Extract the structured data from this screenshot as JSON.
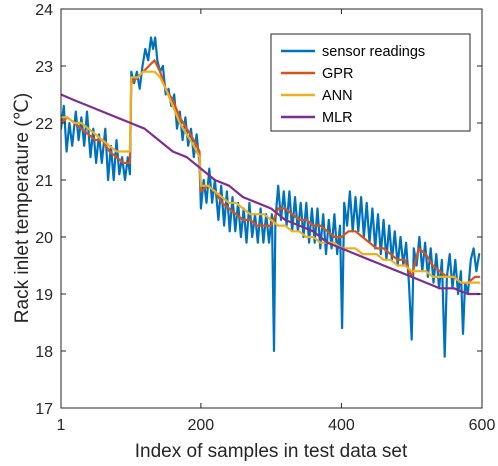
{
  "chart_data": {
    "type": "line",
    "xlabel": "Index of samples in test data set",
    "ylabel": "Rack inlet temperature (℃)",
    "xlim": [
      1,
      600
    ],
    "ylim": [
      17,
      24
    ],
    "xticks": [
      1,
      200,
      400,
      600
    ],
    "yticks": [
      17,
      18,
      19,
      20,
      21,
      22,
      23,
      24
    ],
    "grid": false,
    "legend_position": "top-right",
    "series": [
      {
        "name": "sensor readings",
        "color": "#0072BD",
        "points": [
          [
            1,
            21.9
          ],
          [
            5,
            22.3
          ],
          [
            9,
            21.5
          ],
          [
            13,
            22.0
          ],
          [
            17,
            21.6
          ],
          [
            22,
            22.2
          ],
          [
            26,
            21.7
          ],
          [
            30,
            22.1
          ],
          [
            34,
            21.6
          ],
          [
            38,
            22.2
          ],
          [
            43,
            21.4
          ],
          [
            47,
            21.9
          ],
          [
            51,
            21.3
          ],
          [
            55,
            21.8
          ],
          [
            59,
            21.3
          ],
          [
            64,
            21.9
          ],
          [
            68,
            21.0
          ],
          [
            72,
            21.6
          ],
          [
            76,
            21.0
          ],
          [
            80,
            21.7
          ],
          [
            84,
            21.1
          ],
          [
            88,
            21.4
          ],
          [
            92,
            21.0
          ],
          [
            96,
            21.4
          ],
          [
            99,
            21.1
          ],
          [
            101,
            22.9
          ],
          [
            105,
            22.7
          ],
          [
            109,
            22.9
          ],
          [
            113,
            22.6
          ],
          [
            117,
            23.0
          ],
          [
            121,
            23.3
          ],
          [
            125,
            23.1
          ],
          [
            129,
            23.5
          ],
          [
            132,
            23.3
          ],
          [
            135,
            23.5
          ],
          [
            138,
            23.1
          ],
          [
            142,
            22.9
          ],
          [
            146,
            23.0
          ],
          [
            150,
            22.5
          ],
          [
            154,
            22.6
          ],
          [
            158,
            22.3
          ],
          [
            162,
            22.5
          ],
          [
            166,
            21.9
          ],
          [
            170,
            22.2
          ],
          [
            174,
            21.7
          ],
          [
            178,
            22.1
          ],
          [
            182,
            21.6
          ],
          [
            186,
            21.9
          ],
          [
            190,
            21.4
          ],
          [
            194,
            21.8
          ],
          [
            198,
            21.3
          ],
          [
            200,
            20.5
          ],
          [
            204,
            21.0
          ],
          [
            208,
            20.6
          ],
          [
            212,
            21.2
          ],
          [
            216,
            20.6
          ],
          [
            220,
            21.0
          ],
          [
            225,
            20.3
          ],
          [
            229,
            20.9
          ],
          [
            233,
            20.2
          ],
          [
            237,
            20.8
          ],
          [
            241,
            20.1
          ],
          [
            245,
            20.7
          ],
          [
            249,
            20.1
          ],
          [
            253,
            20.6
          ],
          [
            257,
            20.0
          ],
          [
            261,
            20.5
          ],
          [
            265,
            19.9
          ],
          [
            269,
            20.6
          ],
          [
            273,
            20.0
          ],
          [
            277,
            20.4
          ],
          [
            281,
            19.9
          ],
          [
            285,
            20.5
          ],
          [
            289,
            19.9
          ],
          [
            293,
            20.4
          ],
          [
            297,
            19.9
          ],
          [
            301,
            20.4
          ],
          [
            304,
            18.0
          ],
          [
            306,
            20.3
          ],
          [
            310,
            20.9
          ],
          [
            314,
            20.3
          ],
          [
            318,
            20.8
          ],
          [
            322,
            20.2
          ],
          [
            326,
            20.8
          ],
          [
            330,
            20.1
          ],
          [
            334,
            20.7
          ],
          [
            338,
            20.1
          ],
          [
            342,
            20.6
          ],
          [
            346,
            20.0
          ],
          [
            350,
            20.6
          ],
          [
            354,
            19.9
          ],
          [
            358,
            20.5
          ],
          [
            362,
            19.9
          ],
          [
            366,
            20.5
          ],
          [
            370,
            19.8
          ],
          [
            374,
            20.4
          ],
          [
            378,
            19.7
          ],
          [
            382,
            20.3
          ],
          [
            386,
            19.8
          ],
          [
            390,
            20.4
          ],
          [
            394,
            19.7
          ],
          [
            398,
            20.2
          ],
          [
            401,
            18.4
          ],
          [
            404,
            20.6
          ],
          [
            408,
            20.2
          ],
          [
            412,
            20.8
          ],
          [
            416,
            20.1
          ],
          [
            420,
            20.7
          ],
          [
            424,
            20.1
          ],
          [
            428,
            20.7
          ],
          [
            432,
            20.0
          ],
          [
            436,
            20.6
          ],
          [
            440,
            19.9
          ],
          [
            444,
            20.5
          ],
          [
            448,
            19.8
          ],
          [
            452,
            20.4
          ],
          [
            456,
            19.7
          ],
          [
            460,
            20.3
          ],
          [
            464,
            19.6
          ],
          [
            468,
            20.2
          ],
          [
            472,
            19.6
          ],
          [
            476,
            20.1
          ],
          [
            480,
            19.5
          ],
          [
            484,
            20.0
          ],
          [
            488,
            19.5
          ],
          [
            492,
            19.9
          ],
          [
            496,
            19.2
          ],
          [
            500,
            18.2
          ],
          [
            503,
            19.8
          ],
          [
            507,
            19.5
          ],
          [
            511,
            20.0
          ],
          [
            515,
            19.4
          ],
          [
            519,
            19.9
          ],
          [
            523,
            19.3
          ],
          [
            527,
            19.8
          ],
          [
            531,
            19.2
          ],
          [
            535,
            19.7
          ],
          [
            539,
            19.1
          ],
          [
            543,
            19.6
          ],
          [
            547,
            17.9
          ],
          [
            550,
            19.3
          ],
          [
            554,
            19.7
          ],
          [
            558,
            19.1
          ],
          [
            562,
            19.6
          ],
          [
            566,
            19.0
          ],
          [
            570,
            19.4
          ],
          [
            573,
            18.3
          ],
          [
            576,
            19.2
          ],
          [
            580,
            19.0
          ],
          [
            584,
            19.6
          ],
          [
            588,
            19.8
          ],
          [
            592,
            19.4
          ],
          [
            596,
            19.7
          ]
        ]
      },
      {
        "name": "GPR",
        "color": "#D95319",
        "points": [
          [
            1,
            22.0
          ],
          [
            10,
            22.1
          ],
          [
            20,
            22.0
          ],
          [
            30,
            21.9
          ],
          [
            40,
            21.8
          ],
          [
            50,
            21.7
          ],
          [
            60,
            21.7
          ],
          [
            70,
            21.5
          ],
          [
            80,
            21.4
          ],
          [
            90,
            21.3
          ],
          [
            99,
            21.3
          ],
          [
            101,
            22.7
          ],
          [
            110,
            22.8
          ],
          [
            118,
            22.9
          ],
          [
            126,
            23.0
          ],
          [
            134,
            23.1
          ],
          [
            142,
            22.9
          ],
          [
            150,
            22.6
          ],
          [
            160,
            22.4
          ],
          [
            170,
            22.1
          ],
          [
            180,
            21.9
          ],
          [
            190,
            21.7
          ],
          [
            198,
            21.5
          ],
          [
            200,
            20.8
          ],
          [
            210,
            20.9
          ],
          [
            220,
            20.8
          ],
          [
            230,
            20.6
          ],
          [
            240,
            20.5
          ],
          [
            250,
            20.4
          ],
          [
            260,
            20.3
          ],
          [
            270,
            20.3
          ],
          [
            280,
            20.2
          ],
          [
            290,
            20.2
          ],
          [
            300,
            20.2
          ],
          [
            310,
            20.5
          ],
          [
            320,
            20.5
          ],
          [
            330,
            20.4
          ],
          [
            340,
            20.3
          ],
          [
            350,
            20.3
          ],
          [
            360,
            20.2
          ],
          [
            370,
            20.2
          ],
          [
            380,
            20.1
          ],
          [
            390,
            20.0
          ],
          [
            400,
            20.0
          ],
          [
            410,
            20.1
          ],
          [
            420,
            20.1
          ],
          [
            430,
            20.0
          ],
          [
            440,
            19.9
          ],
          [
            450,
            19.8
          ],
          [
            460,
            19.8
          ],
          [
            470,
            19.7
          ],
          [
            480,
            19.6
          ],
          [
            490,
            19.6
          ],
          [
            500,
            19.3
          ],
          [
            510,
            19.8
          ],
          [
            520,
            19.7
          ],
          [
            530,
            19.5
          ],
          [
            540,
            19.4
          ],
          [
            550,
            19.3
          ],
          [
            560,
            19.3
          ],
          [
            570,
            19.2
          ],
          [
            580,
            19.2
          ],
          [
            590,
            19.3
          ],
          [
            596,
            19.3
          ]
        ]
      },
      {
        "name": "ANN",
        "color": "#EDB120",
        "points": [
          [
            1,
            22.1
          ],
          [
            10,
            22.1
          ],
          [
            20,
            22.0
          ],
          [
            30,
            22.0
          ],
          [
            40,
            21.9
          ],
          [
            50,
            21.8
          ],
          [
            60,
            21.7
          ],
          [
            70,
            21.6
          ],
          [
            80,
            21.5
          ],
          [
            90,
            21.5
          ],
          [
            99,
            21.5
          ],
          [
            101,
            22.8
          ],
          [
            110,
            22.8
          ],
          [
            118,
            22.9
          ],
          [
            126,
            22.9
          ],
          [
            134,
            22.9
          ],
          [
            142,
            22.8
          ],
          [
            150,
            22.6
          ],
          [
            160,
            22.3
          ],
          [
            170,
            22.0
          ],
          [
            180,
            21.8
          ],
          [
            190,
            21.6
          ],
          [
            198,
            21.4
          ],
          [
            200,
            20.9
          ],
          [
            210,
            20.9
          ],
          [
            220,
            20.8
          ],
          [
            230,
            20.7
          ],
          [
            240,
            20.6
          ],
          [
            250,
            20.6
          ],
          [
            260,
            20.5
          ],
          [
            270,
            20.4
          ],
          [
            280,
            20.4
          ],
          [
            290,
            20.4
          ],
          [
            300,
            20.3
          ],
          [
            310,
            20.2
          ],
          [
            320,
            20.2
          ],
          [
            330,
            20.1
          ],
          [
            340,
            20.1
          ],
          [
            350,
            20.0
          ],
          [
            360,
            20.0
          ],
          [
            370,
            19.9
          ],
          [
            380,
            19.9
          ],
          [
            390,
            19.9
          ],
          [
            400,
            19.8
          ],
          [
            410,
            19.8
          ],
          [
            420,
            19.8
          ],
          [
            430,
            19.7
          ],
          [
            440,
            19.7
          ],
          [
            450,
            19.7
          ],
          [
            460,
            19.6
          ],
          [
            470,
            19.6
          ],
          [
            480,
            19.5
          ],
          [
            490,
            19.5
          ],
          [
            500,
            19.4
          ],
          [
            510,
            19.4
          ],
          [
            520,
            19.4
          ],
          [
            530,
            19.3
          ],
          [
            540,
            19.3
          ],
          [
            550,
            19.3
          ],
          [
            560,
            19.3
          ],
          [
            570,
            19.2
          ],
          [
            580,
            19.2
          ],
          [
            590,
            19.2
          ],
          [
            596,
            19.2
          ]
        ]
      },
      {
        "name": "MLR",
        "color": "#7E2F8E",
        "points": [
          [
            1,
            22.5
          ],
          [
            20,
            22.4
          ],
          [
            40,
            22.3
          ],
          [
            60,
            22.2
          ],
          [
            80,
            22.1
          ],
          [
            100,
            22.0
          ],
          [
            120,
            21.9
          ],
          [
            140,
            21.7
          ],
          [
            160,
            21.5
          ],
          [
            180,
            21.4
          ],
          [
            200,
            21.2
          ],
          [
            220,
            21.0
          ],
          [
            240,
            20.9
          ],
          [
            260,
            20.7
          ],
          [
            280,
            20.6
          ],
          [
            300,
            20.5
          ],
          [
            320,
            20.3
          ],
          [
            340,
            20.2
          ],
          [
            360,
            20.1
          ],
          [
            380,
            19.9
          ],
          [
            400,
            19.8
          ],
          [
            420,
            19.7
          ],
          [
            440,
            19.6
          ],
          [
            460,
            19.5
          ],
          [
            480,
            19.4
          ],
          [
            500,
            19.3
          ],
          [
            520,
            19.2
          ],
          [
            540,
            19.1
          ],
          [
            560,
            19.1
          ],
          [
            580,
            19.0
          ],
          [
            596,
            19.0
          ]
        ]
      }
    ]
  }
}
